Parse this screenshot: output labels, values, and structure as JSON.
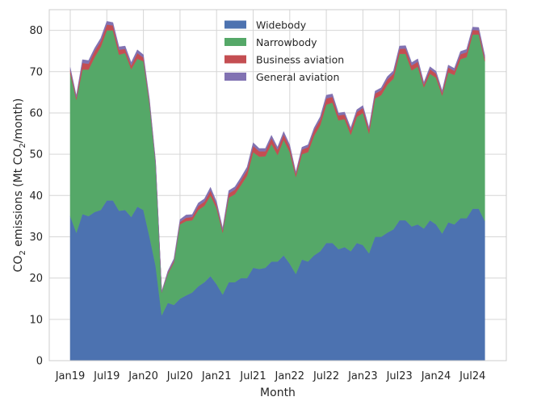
{
  "chart_data": {
    "type": "area",
    "stacked": true,
    "title": "",
    "xlabel": "Month",
    "ylabel_parts": [
      "CO",
      "2",
      " emissions (Mt CO",
      "2",
      "/month)"
    ],
    "ylim": [
      0,
      85
    ],
    "yticks": [
      0,
      10,
      20,
      30,
      40,
      50,
      60,
      70,
      80
    ],
    "x_tick_labels": [
      "Jan19",
      "Jul19",
      "Jan20",
      "Jul20",
      "Jan21",
      "Jul21",
      "Jan22",
      "Jul22",
      "Jan23",
      "Jul23",
      "Jan24",
      "Jul24"
    ],
    "grid": true,
    "legend_position": "top-center",
    "series": [
      {
        "name": "Widebody",
        "color": "#4c72b0",
        "values": [
          35,
          31,
          35.5,
          35,
          36,
          36.5,
          38.8,
          38.8,
          36.3,
          36.5,
          34.8,
          37.3,
          36.5,
          30,
          23,
          11,
          14,
          13.5,
          15,
          15.8,
          16.5,
          18,
          19,
          20.5,
          18.5,
          16,
          19,
          19,
          20,
          20,
          22.5,
          22.2,
          22.5,
          24,
          24,
          25.5,
          23.5,
          21,
          24.5,
          24,
          25.5,
          26.5,
          28.5,
          28.5,
          27,
          27.5,
          26.5,
          28.5,
          28,
          26,
          30,
          30,
          31,
          31.8,
          34,
          34,
          32.5,
          33,
          32,
          34,
          33,
          30.8,
          33.5,
          33,
          34.5,
          34.5,
          36.8,
          36.8,
          33.8
        ]
      },
      {
        "name": "Narrowbody",
        "color": "#55a868",
        "values": [
          34.5,
          32.2,
          35,
          35.5,
          37.5,
          39.5,
          41.2,
          41.2,
          37.8,
          38,
          35.8,
          35.8,
          36,
          32,
          24.5,
          5.5,
          7,
          10.3,
          18,
          18,
          17.5,
          18.5,
          18.5,
          19.5,
          18.4,
          15,
          20.5,
          21.3,
          22.5,
          24.8,
          28,
          27.2,
          27,
          28.5,
          25.8,
          28,
          27,
          23.5,
          25.5,
          26.5,
          29,
          30.5,
          33.5,
          34,
          31.2,
          31,
          28.2,
          30.5,
          32,
          29,
          33.5,
          34.3,
          35.8,
          36.5,
          40.3,
          40.3,
          37.8,
          38.2,
          34.2,
          35.5,
          35.5,
          33.4,
          36.3,
          36.2,
          38.5,
          39,
          42.2,
          42.2,
          38.7
        ]
      },
      {
        "name": "Business aviation",
        "color": "#c44e52",
        "values": [
          0.9,
          0.6,
          1.6,
          1.4,
          1.5,
          1.3,
          1.4,
          1.2,
          1.2,
          1,
          0.9,
          1.4,
          0.9,
          0.7,
          0.4,
          0.1,
          0.3,
          0.4,
          0.6,
          0.8,
          0.8,
          1,
          1,
          1.2,
          0.9,
          0.6,
          1,
          1.1,
          1.2,
          1.3,
          1.5,
          1.3,
          1.2,
          1.4,
          1.3,
          1.3,
          1.2,
          0.8,
          1.1,
          1.2,
          1.3,
          1.4,
          1.5,
          1.4,
          1.2,
          1.1,
          1.1,
          1.2,
          1.2,
          1,
          1.2,
          1.2,
          1.3,
          1.2,
          1.2,
          1.3,
          1.2,
          1.2,
          0.7,
          1.1,
          1,
          0.7,
          1.2,
          1,
          1.2,
          1.2,
          1.1,
          1,
          0.8
        ]
      },
      {
        "name": "General aviation",
        "color": "#8172b2",
        "values": [
          0.6,
          0.4,
          0.8,
          0.8,
          0.7,
          0.8,
          0.8,
          0.7,
          0.7,
          0.7,
          0.7,
          0.8,
          0.7,
          0.6,
          0.5,
          0.2,
          0.4,
          0.5,
          0.6,
          0.7,
          0.6,
          0.7,
          0.7,
          0.8,
          0.7,
          0.5,
          0.7,
          0.7,
          0.7,
          0.8,
          0.8,
          0.7,
          0.7,
          0.7,
          0.6,
          0.7,
          0.6,
          0.4,
          0.6,
          0.6,
          0.6,
          0.7,
          0.8,
          0.7,
          0.6,
          0.6,
          0.6,
          0.6,
          0.6,
          0.5,
          0.6,
          0.6,
          0.7,
          0.7,
          0.7,
          0.7,
          0.7,
          0.7,
          0.5,
          0.6,
          0.6,
          0.5,
          0.6,
          0.6,
          0.7,
          0.7,
          0.7,
          0.7,
          0.6
        ]
      }
    ]
  }
}
